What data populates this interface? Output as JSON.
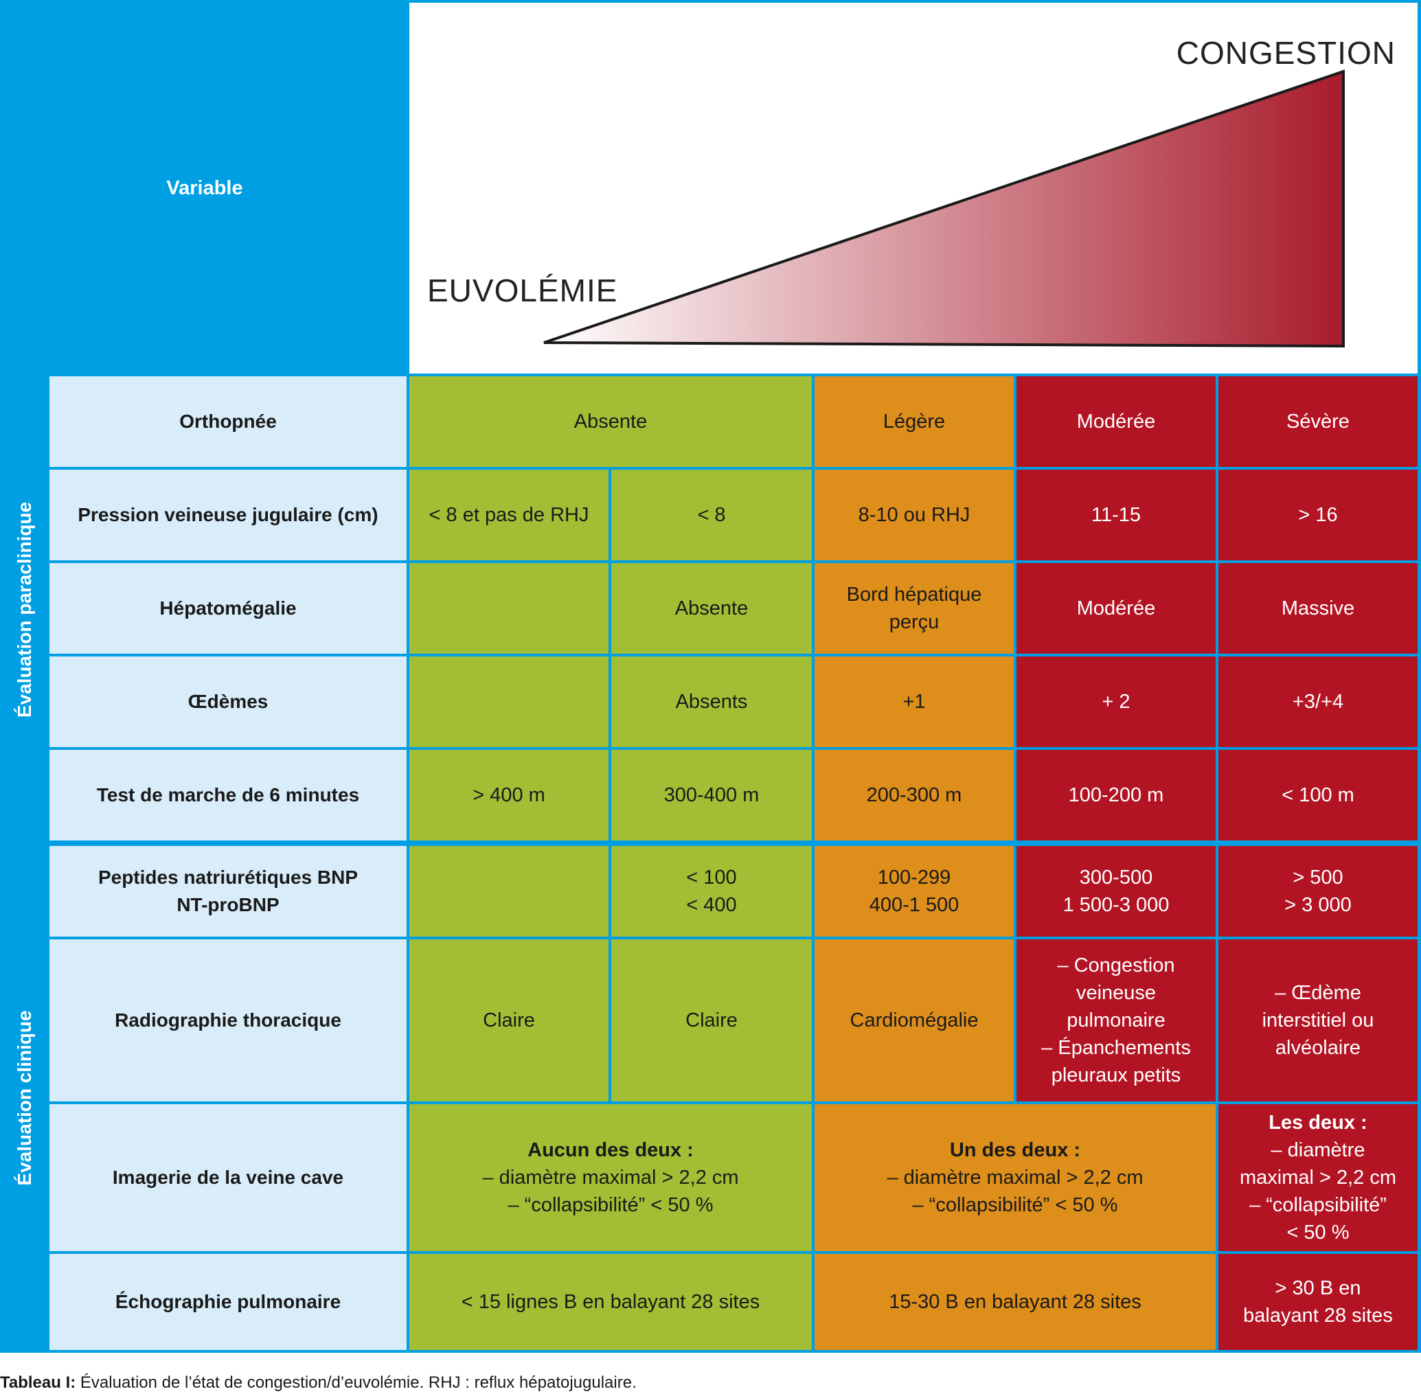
{
  "header": {
    "variable_label": "Variable",
    "congestion_label": "CONGESTION",
    "euvolemie_label": "EUVOLÉMIE",
    "gradient_start_color": "#ffffff",
    "gradient_end_color": "#a81c2c"
  },
  "sections": {
    "paraclinique": "Évaluation paraclinique",
    "clinique": "Évaluation clinique"
  },
  "colors": {
    "blue": "#009fe3",
    "light_blue": "#d8ecf9",
    "green": "#a2be34",
    "orange": "#de8e1a",
    "red": "#b31424"
  },
  "rows": {
    "orthopnee": {
      "label": "Orthopnée",
      "absente": "Absente",
      "legere": "Légère",
      "moderee": "Modérée",
      "severe": "Sévère"
    },
    "pvj": {
      "label": "Pression veineuse jugulaire (cm)",
      "c1": "< 8 et pas de RHJ",
      "c2": "< 8",
      "c3": "8-10 ou RHJ",
      "c4": "11-15",
      "c5": "> 16"
    },
    "hepatomegalie": {
      "label": "Hépatomégalie",
      "c2": "Absente",
      "c3": "Bord hépatique\nperçu",
      "c4": "Modérée",
      "c5": "Massive"
    },
    "oedemes": {
      "label": "Œdèmes",
      "c2": "Absents",
      "c3": "+1",
      "c4": "+ 2",
      "c5": "+3/+4"
    },
    "marche": {
      "label": "Test de marche de 6 minutes",
      "c1": "> 400 m",
      "c2": "300-400 m",
      "c3": "200-300 m",
      "c4": "100-200 m",
      "c5": "< 100 m"
    },
    "peptides": {
      "label": "Peptides natriurétiques BNP\nNT-proBNP",
      "c2": "< 100\n< 400",
      "c3": "100-299\n400-1 500",
      "c4": "300-500\n1 500-3 000",
      "c5": "> 500\n> 3 000"
    },
    "radio": {
      "label": "Radiographie thoracique",
      "c1": "Claire",
      "c2": "Claire",
      "c3": "Cardiomégalie",
      "c4": "– Congestion\nveineuse\npulmonaire\n– Épanchements\npleuraux petits",
      "c5": "– Œdème\ninterstitiel ou\nalvéolaire"
    },
    "veine_cave": {
      "label": "Imagerie de la veine cave",
      "green_title": "Aucun des deux :",
      "green_body": "– diamètre maximal > 2,2 cm\n– “collapsibilité” < 50 %",
      "orange_title": "Un des deux :",
      "orange_body": "– diamètre maximal > 2,2 cm\n– “collapsibilité” < 50 %",
      "red_title": "Les deux :",
      "red_body": "– diamètre\nmaximal > 2,2 cm\n– “collapsibilité”\n< 50 %"
    },
    "echo": {
      "label": "Échographie pulmonaire",
      "green": "< 15 lignes B en balayant 28 sites",
      "orange": "15-30 B en balayant 28 sites",
      "red": "> 30 B en\nbalayant 28 sites"
    }
  },
  "caption": {
    "bold": "Tableau I:",
    "text": " Évaluation de l’état de congestion/d’euvolémie. RHJ : reflux hépatojugulaire."
  }
}
